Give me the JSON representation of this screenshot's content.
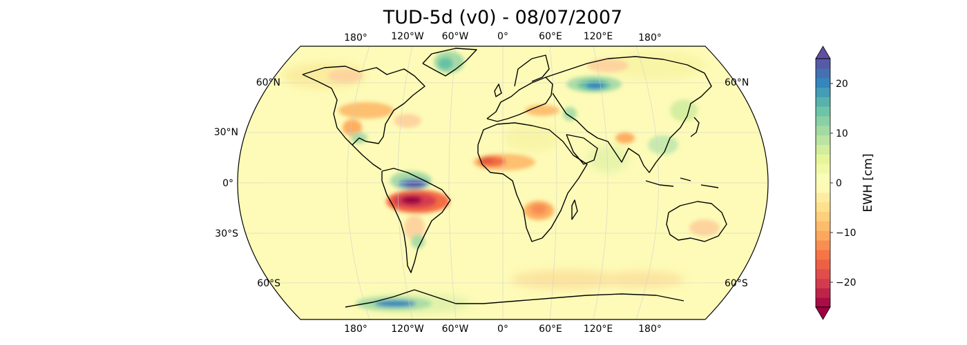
{
  "title": "TUD-5d (v0) - 08/07/2007",
  "map": {
    "projection": "Robinson",
    "lon_labels_top": [
      "180°",
      "120°W",
      "60°W",
      "0°",
      "60°E",
      "120°E",
      "180°"
    ],
    "lon_labels_bottom": [
      "180°",
      "120°W",
      "60°W",
      "0°",
      "60°E",
      "120°E",
      "180°"
    ],
    "lat_labels_left": [
      "60°N",
      "30°N",
      "0°",
      "30°S",
      "60°S"
    ],
    "lat_labels_right": [
      "60°N",
      "60°S"
    ],
    "background_color": "#fdfbb7",
    "coastline_color": "#000000",
    "grid": true
  },
  "colorbar": {
    "label": "EWH [cm]",
    "range": [
      -25,
      25
    ],
    "ticks": [
      {
        "value": 20,
        "label": "20"
      },
      {
        "value": 10,
        "label": "10"
      },
      {
        "value": 0,
        "label": "0"
      },
      {
        "value": -10,
        "label": "−10"
      },
      {
        "value": -20,
        "label": "−20"
      }
    ],
    "colormap": "Spectral",
    "extend": "both",
    "levels": 26
  }
}
